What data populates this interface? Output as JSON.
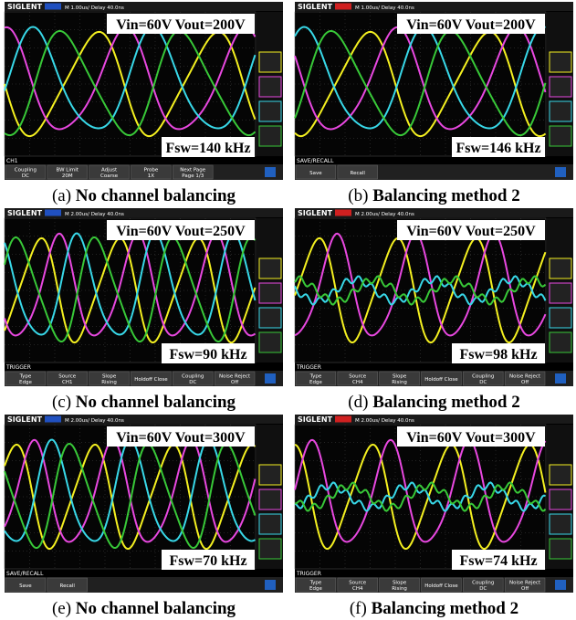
{
  "figure": {
    "panels": [
      {
        "brand": "SIGLENT",
        "timebase": "M 1.00us/ Delay 40.0ns",
        "condition": "Vin=60V Vout=200V",
        "frequency": "Fsw=140 kHz",
        "status": "CH1",
        "softkeys": [
          [
            "Coupling",
            "DC"
          ],
          [
            "BW Limit",
            "20M"
          ],
          [
            "Adjust",
            "Coarse"
          ],
          [
            "Probe",
            "1X"
          ],
          [
            "Next Page",
            "Page 1/3"
          ]
        ],
        "label": "(a)",
        "caption": "No channel balancing"
      },
      {
        "brand": "SIGLENT",
        "timebase": "M 1.00us/ Delay 40.0ns",
        "condition": "Vin=60V Vout=200V",
        "frequency": "Fsw=146 kHz",
        "status": "SAVE/RECALL",
        "softkeys": [
          [
            "Save"
          ],
          [
            "Recall"
          ]
        ],
        "label": "(b)",
        "caption": "Balancing method 2"
      },
      {
        "brand": "SIGLENT",
        "timebase": "M 2.00us/ Delay 40.0ns",
        "condition": "Vin=60V Vout=250V",
        "frequency": "Fsw=90 kHz",
        "status": "TRIGGER",
        "softkeys": [
          [
            "Type",
            "Edge"
          ],
          [
            "Source",
            "CH1"
          ],
          [
            "Slope",
            "Rising"
          ],
          [
            "Holdoff Close"
          ],
          [
            "Coupling",
            "DC"
          ],
          [
            "Noise Reject",
            "Off"
          ]
        ],
        "label": "(c)",
        "caption": "No channel balancing"
      },
      {
        "brand": "SIGLENT",
        "timebase": "M 2.00us/ Delay 40.0ns",
        "condition": "Vin=60V Vout=250V",
        "frequency": "Fsw=98 kHz",
        "status": "TRIGGER",
        "softkeys": [
          [
            "Type",
            "Edge"
          ],
          [
            "Source",
            "CH4"
          ],
          [
            "Slope",
            "Rising"
          ],
          [
            "Holdoff Close"
          ],
          [
            "Coupling",
            "DC"
          ],
          [
            "Noise Reject",
            "Off"
          ]
        ],
        "label": "(d)",
        "caption": "Balancing method 2"
      },
      {
        "brand": "SIGLENT",
        "timebase": "M 2.00us/ Delay 40.0ns",
        "condition": "Vin=60V Vout=300V",
        "frequency": "Fsw=70 kHz",
        "status": "SAVE/RECALL",
        "softkeys": [
          [
            "Save"
          ],
          [
            "Recall"
          ]
        ],
        "label": "(e)",
        "caption": "No channel balancing"
      },
      {
        "brand": "SIGLENT",
        "timebase": "M 2.00us/ Delay 40.0ns",
        "condition": "Vin=60V Vout=300V",
        "frequency": "Fsw=74 kHz",
        "status": "TRIGGER",
        "softkeys": [
          [
            "Type",
            "Edge"
          ],
          [
            "Source",
            "CH4"
          ],
          [
            "Slope",
            "Rising"
          ],
          [
            "Holdoff Close"
          ],
          [
            "Coupling",
            "DC"
          ],
          [
            "Noise Reject",
            "Off"
          ]
        ],
        "label": "(f)",
        "caption": "Balancing method 2"
      }
    ]
  }
}
